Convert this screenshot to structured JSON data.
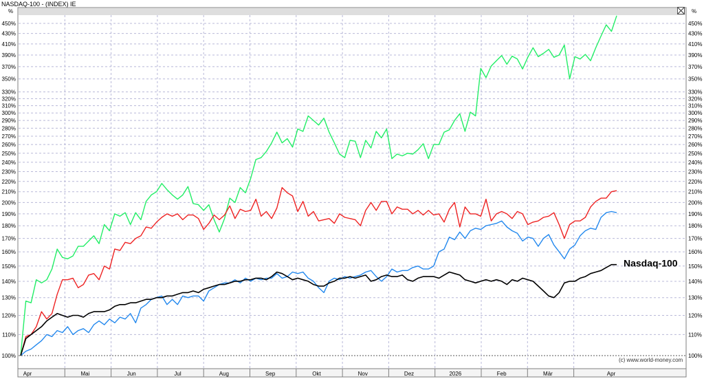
{
  "title": "NASDAQ-100 - (INDEX) IE",
  "copyright": "(c) www.world-money.com",
  "chart_data": {
    "type": "line",
    "y_unit": "%",
    "yscale": "log",
    "ylim": [
      100,
      470
    ],
    "y_ticks": [
      100,
      110,
      120,
      130,
      140,
      150,
      160,
      170,
      180,
      190,
      200,
      210,
      220,
      230,
      240,
      250,
      260,
      270,
      280,
      290,
      300,
      310,
      320,
      330,
      350,
      370,
      390,
      410,
      430,
      450
    ],
    "x_ticks": [
      "Apr",
      "Mai",
      "Jun",
      "Jul",
      "Aug",
      "Sep",
      "Okt",
      "Nov",
      "Dez",
      "2026",
      "Feb",
      "Mär",
      "Apr"
    ],
    "grid": true,
    "series": [
      {
        "color": "#22ee66",
        "values": [
          100,
          128,
          127,
          141,
          139,
          141,
          148,
          162,
          156,
          155,
          157,
          164,
          164,
          168,
          172,
          166,
          181,
          176,
          190,
          188,
          191,
          181,
          191,
          185,
          201,
          207,
          210,
          218,
          212,
          207,
          203,
          207,
          215,
          199,
          198,
          193,
          198,
          185,
          175,
          186,
          204,
          200,
          214,
          209,
          223,
          243,
          245,
          252,
          262,
          275,
          262,
          267,
          257,
          279,
          276,
          296,
          290,
          284,
          293,
          275,
          262,
          249,
          245,
          265,
          264,
          245,
          265,
          256,
          276,
          268,
          279,
          244,
          249,
          247,
          250,
          249,
          254,
          261,
          244,
          260,
          260,
          275,
          278,
          290,
          299,
          276,
          301,
          296,
          367,
          352,
          371,
          380,
          389,
          374,
          388,
          383,
          366,
          386,
          403,
          387,
          393,
          400,
          386,
          390,
          408,
          350,
          387,
          383,
          391,
          380,
          403,
          425,
          447,
          434,
          466
        ]
      },
      {
        "color": "#ee2222",
        "values": [
          100,
          109,
          110,
          114,
          122,
          118,
          121,
          132,
          141,
          141,
          142,
          136,
          138,
          144,
          145,
          141,
          150,
          148,
          162,
          161,
          167,
          166,
          170,
          172,
          179,
          178,
          183,
          187,
          190,
          188,
          190,
          185,
          189,
          189,
          186,
          177,
          182,
          189,
          185,
          189,
          197,
          186,
          194,
          192,
          193,
          203,
          188,
          192,
          186,
          195,
          214,
          209,
          206,
          192,
          201,
          188,
          192,
          184,
          185,
          186,
          182,
          190,
          187,
          186,
          185,
          180,
          193,
          200,
          193,
          201,
          201,
          190,
          196,
          194,
          194,
          190,
          193,
          189,
          193,
          189,
          190,
          183,
          194,
          200,
          179,
          196,
          190,
          190,
          188,
          203,
          184,
          190,
          192,
          190,
          186,
          192,
          190,
          181,
          183,
          184,
          187,
          188,
          191,
          181,
          170,
          181,
          184,
          184,
          187,
          196,
          201,
          204,
          204,
          210,
          211
        ]
      },
      {
        "color": "#2288ee",
        "values": [
          100,
          102,
          103,
          105,
          107,
          110,
          109,
          112,
          111,
          114,
          110,
          112,
          113,
          111,
          115,
          117,
          115,
          118,
          116,
          119,
          118,
          121,
          116,
          124,
          126,
          129,
          130,
          131,
          126,
          129,
          126,
          131,
          130,
          131,
          131,
          128,
          134,
          136,
          138,
          139,
          139,
          141,
          139,
          142,
          140,
          142,
          141,
          142,
          142,
          145,
          142,
          143,
          146,
          145,
          146,
          142,
          140,
          136,
          133,
          140,
          142,
          141,
          143,
          142,
          143,
          144,
          146,
          147,
          143,
          140,
          143,
          148,
          146,
          147,
          147,
          149,
          150,
          148,
          148,
          150,
          160,
          162,
          171,
          169,
          175,
          170,
          176,
          178,
          177,
          180,
          181,
          182,
          184,
          179,
          176,
          174,
          168,
          171,
          170,
          164,
          170,
          173,
          165,
          160,
          155,
          162,
          165,
          172,
          176,
          178,
          177,
          187,
          191,
          192,
          191
        ]
      },
      {
        "name": "Nasdaq-100",
        "color": "#000000",
        "values": [
          100,
          108,
          110,
          112,
          114,
          117,
          119,
          121,
          120,
          119,
          120,
          120,
          119,
          121,
          122,
          122,
          122,
          123,
          125,
          126,
          126,
          127,
          127,
          128,
          129,
          129,
          130,
          130,
          131,
          131,
          132,
          133,
          133,
          134,
          133,
          135,
          136,
          137,
          138,
          138,
          139,
          140,
          140,
          141,
          141,
          142,
          142,
          141,
          143,
          146,
          145,
          143,
          141,
          142,
          141,
          140,
          138,
          137,
          137,
          139,
          140,
          142,
          142,
          143,
          142,
          143,
          144,
          140,
          141,
          143,
          144,
          143,
          143,
          144,
          141,
          140,
          142,
          143,
          143,
          143,
          142,
          144,
          146,
          145,
          144,
          141,
          140,
          139,
          140,
          141,
          140,
          141,
          140,
          138,
          141,
          140,
          142,
          141,
          140,
          137,
          134,
          131,
          130,
          133,
          139,
          140,
          140,
          142,
          143,
          145,
          146,
          147,
          149,
          151,
          151
        ]
      }
    ]
  }
}
